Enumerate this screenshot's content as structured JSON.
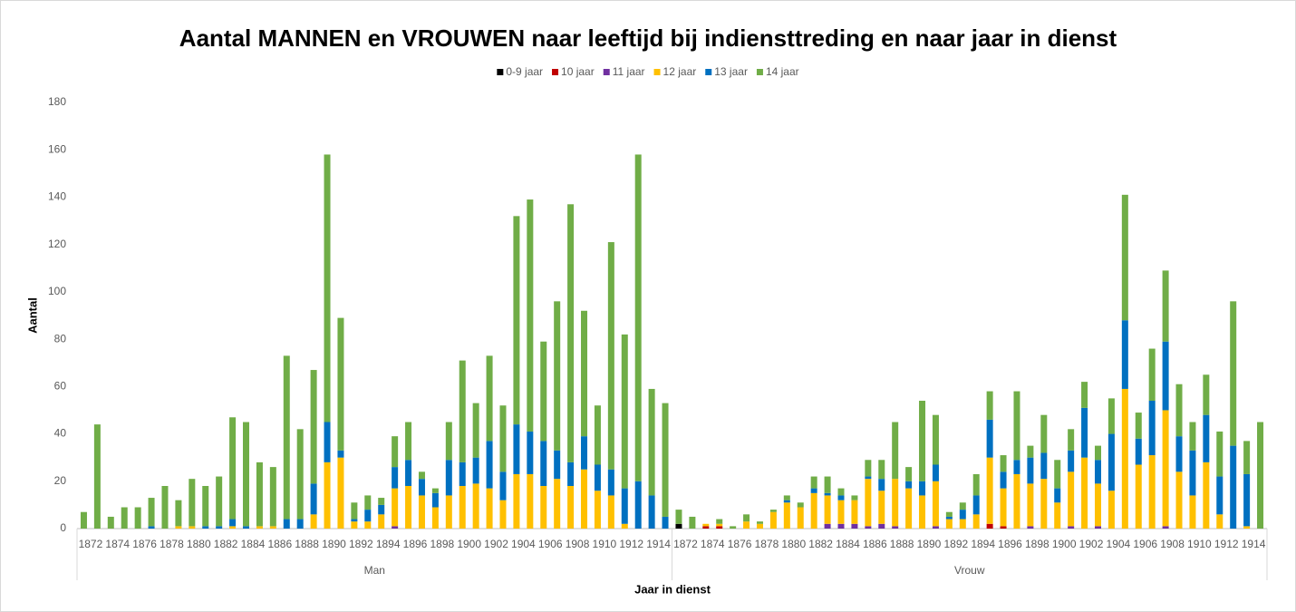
{
  "chart_data": {
    "type": "bar",
    "stacked": true,
    "title": "Aantal MANNEN en VROUWEN naar leeftijd bij indiensttreding en naar jaar in dienst",
    "xlabel": "Jaar in dienst",
    "ylabel": "Aantal",
    "groups": [
      "Man",
      "Vrouw"
    ],
    "categories": [
      "1872",
      null,
      "1874",
      null,
      "1876",
      null,
      "1878",
      null,
      "1880",
      null,
      "1882",
      null,
      "1884",
      null,
      "1886",
      null,
      "1888",
      null,
      "1890",
      null,
      "1892",
      null,
      "1894",
      null,
      "1896",
      null,
      "1898",
      null,
      "1900",
      null,
      "1902",
      null,
      "1904",
      null,
      "1906",
      null,
      "1908",
      null,
      "1910",
      null,
      "1912",
      null,
      "1914",
      null,
      "1872",
      null,
      "1874",
      null,
      "1876",
      null,
      "1878",
      null,
      "1880",
      null,
      "1882",
      null,
      "1884",
      null,
      "1886",
      null,
      "1888",
      null,
      "1890",
      null,
      "1892",
      null,
      "1894",
      null,
      "1896",
      null,
      "1898",
      null,
      "1900",
      null,
      "1902",
      null,
      "1904",
      null,
      "1906",
      null,
      "1908",
      null,
      "1910",
      null,
      "1912",
      null,
      "1914",
      null
    ],
    "series": [
      {
        "name": "0-9 jaar",
        "color": "#000000",
        "values": [
          0,
          0,
          0,
          0,
          0,
          0,
          0,
          0,
          0,
          0,
          0,
          0,
          0,
          0,
          0,
          0,
          0,
          0,
          0,
          0,
          0,
          0,
          0,
          0,
          0,
          0,
          0,
          0,
          0,
          0,
          0,
          0,
          0,
          0,
          0,
          0,
          0,
          0,
          0,
          0,
          0,
          0,
          0,
          0,
          2,
          0,
          0,
          0,
          0,
          0,
          0,
          0,
          0,
          0,
          0,
          0,
          0,
          0,
          0,
          0,
          0,
          0,
          0,
          0,
          0,
          0,
          0,
          0,
          0,
          0,
          0,
          0,
          0,
          0,
          0,
          0,
          0,
          0,
          0,
          0,
          0,
          0,
          0,
          0,
          0,
          0,
          0,
          0
        ]
      },
      {
        "name": "10 jaar",
        "color": "#c00000",
        "values": [
          0,
          0,
          0,
          0,
          0,
          0,
          0,
          0,
          0,
          0,
          0,
          0,
          0,
          0,
          0,
          0,
          0,
          0,
          0,
          0,
          0,
          0,
          0,
          0,
          0,
          0,
          0,
          0,
          0,
          0,
          0,
          0,
          0,
          0,
          0,
          0,
          0,
          0,
          0,
          0,
          0,
          0,
          0,
          0,
          0,
          0,
          1,
          1,
          0,
          0,
          0,
          0,
          0,
          0,
          0,
          0,
          0,
          0,
          0,
          0,
          0,
          0,
          0,
          0,
          0,
          0,
          0,
          2,
          1,
          0,
          0,
          0,
          0,
          0,
          0,
          0,
          0,
          0,
          0,
          0,
          0,
          0,
          0,
          0,
          0,
          0,
          0,
          0
        ]
      },
      {
        "name": "11 jaar",
        "color": "#7030a0",
        "values": [
          0,
          0,
          0,
          0,
          0,
          0,
          0,
          0,
          0,
          0,
          0,
          0,
          0,
          0,
          0,
          0,
          0,
          0,
          0,
          0,
          0,
          0,
          0,
          1,
          0,
          0,
          0,
          0,
          0,
          0,
          0,
          0,
          0,
          0,
          0,
          0,
          0,
          0,
          0,
          0,
          0,
          0,
          0,
          0,
          0,
          0,
          0,
          0,
          0,
          0,
          0,
          0,
          0,
          0,
          0,
          2,
          2,
          2,
          1,
          2,
          1,
          0,
          0,
          1,
          0,
          0,
          0,
          0,
          0,
          0,
          1,
          0,
          0,
          1,
          0,
          1,
          0,
          0,
          0,
          0,
          1,
          0,
          0,
          0,
          0,
          0,
          0,
          0
        ]
      },
      {
        "name": "12 jaar",
        "color": "#ffc000",
        "values": [
          0,
          0,
          0,
          0,
          0,
          0,
          0,
          1,
          1,
          0,
          0,
          1,
          0,
          1,
          1,
          0,
          0,
          6,
          28,
          30,
          3,
          3,
          6,
          16,
          18,
          14,
          9,
          14,
          18,
          19,
          17,
          12,
          23,
          23,
          18,
          21,
          18,
          25,
          16,
          14,
          2,
          0,
          0,
          0,
          0,
          0,
          1,
          1,
          0,
          3,
          2,
          7,
          11,
          9,
          15,
          12,
          10,
          10,
          20,
          14,
          20,
          17,
          14,
          19,
          4,
          4,
          6,
          28,
          16,
          23,
          18,
          21,
          11,
          23,
          30,
          18,
          16,
          59,
          27,
          31,
          49,
          24,
          14,
          28,
          6,
          0,
          1,
          0
        ]
      },
      {
        "name": "13 jaar",
        "color": "#0070c0",
        "values": [
          0,
          0,
          0,
          0,
          0,
          1,
          0,
          0,
          0,
          1,
          1,
          3,
          1,
          0,
          0,
          4,
          4,
          13,
          17,
          3,
          1,
          5,
          4,
          9,
          11,
          7,
          6,
          15,
          10,
          11,
          20,
          12,
          21,
          18,
          19,
          12,
          10,
          14,
          11,
          11,
          15,
          20,
          14,
          5,
          0,
          0,
          0,
          0,
          0,
          0,
          0,
          0,
          1,
          0,
          2,
          1,
          2,
          0,
          1,
          5,
          0,
          3,
          6,
          7,
          1,
          4,
          8,
          16,
          7,
          6,
          11,
          11,
          6,
          9,
          21,
          10,
          24,
          29,
          11,
          23,
          29,
          15,
          19,
          20,
          16,
          35,
          22,
          0
        ]
      },
      {
        "name": "14 jaar",
        "color": "#70ad47",
        "values": [
          7,
          44,
          5,
          9,
          9,
          12,
          18,
          11,
          20,
          17,
          21,
          43,
          44,
          27,
          25,
          69,
          38,
          48,
          113,
          56,
          7,
          6,
          3,
          13,
          16,
          3,
          2,
          16,
          43,
          23,
          36,
          28,
          88,
          98,
          42,
          63,
          109,
          53,
          25,
          96,
          65,
          138,
          45,
          48,
          6,
          5,
          0,
          2,
          1,
          3,
          1,
          1,
          2,
          2,
          5,
          7,
          3,
          2,
          7,
          8,
          24,
          6,
          34,
          21,
          2,
          3,
          9,
          12,
          7,
          29,
          5,
          16,
          12,
          9,
          11,
          6,
          15,
          53,
          11,
          22,
          30,
          22,
          12,
          17,
          19,
          61,
          14,
          45
        ]
      }
    ],
    "ylim": [
      0,
      180
    ],
    "yticks": [
      0,
      20,
      40,
      60,
      80,
      100,
      120,
      140,
      160,
      180
    ],
    "grid": false,
    "legend": "top"
  }
}
